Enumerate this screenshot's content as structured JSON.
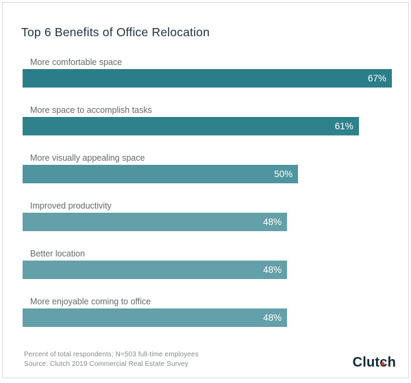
{
  "title": "Top 6 Benefits of Office Relocation",
  "chart_data": {
    "type": "bar",
    "orientation": "horizontal",
    "title": "Top 6 Benefits of Office Relocation",
    "categories": [
      "More comfortable space",
      "More space to accomplish tasks",
      "More visually appealing space",
      "Improved productivity",
      "Better location",
      "More enjoyable coming to office"
    ],
    "values": [
      67,
      61,
      50,
      48,
      48,
      48
    ],
    "value_labels": [
      "67%",
      "61%",
      "50%",
      "48%",
      "48%",
      "48%"
    ],
    "bar_colors": [
      "#2B7D89",
      "#2F818C",
      "#4F949F",
      "#64A0A9",
      "#64A0A9",
      "#64A0A9"
    ],
    "xlabel": "",
    "ylabel": "",
    "xlim": [
      0,
      67
    ],
    "grid": false,
    "legend": false,
    "value_label_position": "inside-right"
  },
  "footer": {
    "line1": "Percent of total respondents; N=503 full-time employees",
    "line2": "Source: Clutch 2019 Commercial Real Estate Survey"
  },
  "logo": {
    "text": "Clutch",
    "pre": "Clut",
    "dot_letter": "c",
    "post": "h",
    "text_color": "#122b3a",
    "dot_color": "#e63e25"
  }
}
